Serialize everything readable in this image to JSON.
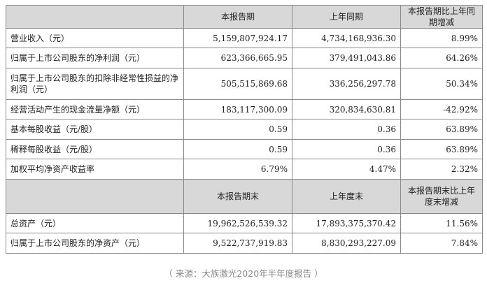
{
  "header1": {
    "col0": "",
    "col1": "本报告期",
    "col2": "上年同期",
    "col3": "本报告期比上年同期增减"
  },
  "rows1": [
    {
      "label": "营业收入（元）",
      "current": "5,159,807,924.17",
      "prior": "4,734,168,936.30",
      "change": "8.99%"
    },
    {
      "label": "归属于上市公司股东的净利润（元）",
      "current": "623,366,665.95",
      "prior": "379,491,043.86",
      "change": "64.26%"
    },
    {
      "label": "归属于上市公司股东的扣除非经常性损益的净利润（元）",
      "current": "505,515,869.68",
      "prior": "336,256,297.78",
      "change": "50.34%"
    },
    {
      "label": "经营活动产生的现金流量净额（元）",
      "current": "183,117,300.09",
      "prior": "320,834,630.81",
      "change": "-42.92%"
    },
    {
      "label": "基本每股收益（元/股）",
      "current": "0.59",
      "prior": "0.36",
      "change": "63.89%"
    },
    {
      "label": "稀释每股收益（元/股）",
      "current": "0.59",
      "prior": "0.36",
      "change": "63.89%"
    },
    {
      "label": "加权平均净资产收益率",
      "current": "6.79%",
      "prior": "4.47%",
      "change": "2.32%"
    }
  ],
  "header2": {
    "col0": "",
    "col1": "本报告期末",
    "col2": "上年度末",
    "col3": "本报告期末比上年度末增减"
  },
  "rows2": [
    {
      "label": "总资产（元）",
      "current": "19,962,526,539.32",
      "prior": "17,893,375,370.42",
      "change": "11.56%"
    },
    {
      "label": "归属于上市公司股东的净资产（元）",
      "current": "9,522,737,919.83",
      "prior": "8,830,293,227.09",
      "change": "7.84%"
    }
  ],
  "caption": "（ 来源：大族激光2020年半年度报告 ）"
}
